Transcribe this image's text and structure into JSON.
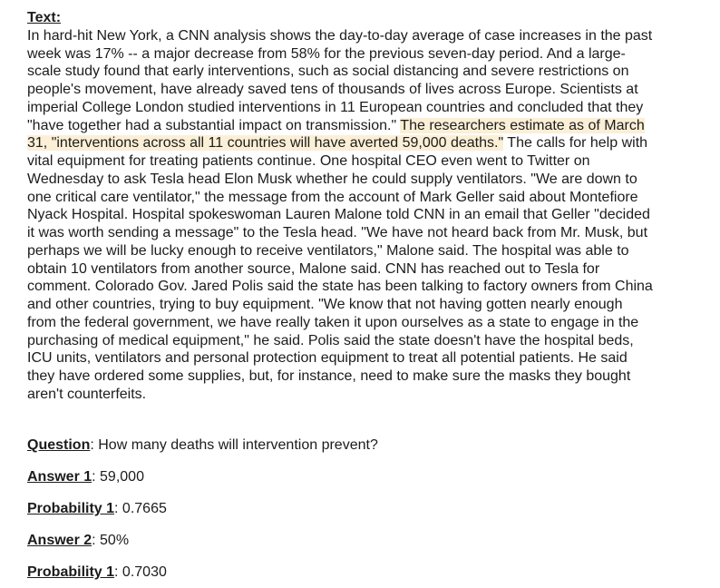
{
  "text_label": "Text:",
  "passage": {
    "before": "In hard-hit New York, a CNN analysis shows the day-to-day average of case increases in the past week was 17% -- a major decrease from 58% for the previous seven-day period. And a large-scale study found that early interventions, such as social distancing and severe restrictions on people's movement, have already saved tens of thousands of lives across Europe. Scientists at imperial College London studied interventions in 11 European countries and concluded that they \"have together had a substantial impact on transmission.\" ",
    "highlight": "The researchers estimate as of March 31, \"interventions across all 11 countries will have averted 59,000 deaths.\"",
    "after": " The calls for help with vital equipment for treating patients continue. One hospital CEO even went to Twitter on Wednesday to ask Tesla head Elon Musk whether he could supply ventilators. \"We are down to one critical care ventilator,\" the message from the account of Mark Geller said about Montefiore Nyack Hospital. Hospital spokeswoman Lauren Malone told CNN in an email that Geller \"decided it was worth sending a message\" to the Tesla head. \"We have not heard back from Mr. Musk, but perhaps we will be lucky enough to receive ventilators,\" Malone said. The hospital was able to obtain 10 ventilators from another source, Malone said. CNN has reached out to Tesla for comment. Colorado Gov. Jared Polis said the state has been talking to factory owners from China and other countries, trying to buy equipment. \"We know that not having gotten nearly enough from the federal government, we have really taken it upon ourselves as a state to engage in the purchasing of medical equipment,\" he said. Polis said the state doesn't have the hospital beds, ICU units, ventilators and personal protection equipment to treat all potential patients. He said they have ordered some supplies, but, for instance, need to make sure the masks they bought aren't counterfeits."
  },
  "highlight_color": "#fbefd6",
  "question": {
    "label": "Question",
    "text": ": How many deaths will intervention prevent?"
  },
  "answers": [
    {
      "answer_label": "Answer 1",
      "answer_value": ": 59,000",
      "prob_label": "Probability 1",
      "prob_value": ": 0.7665"
    },
    {
      "answer_label": "Answer 2",
      "answer_value": ": 50%",
      "prob_label": "Probability 1",
      "prob_value": ": 0.7030"
    }
  ]
}
